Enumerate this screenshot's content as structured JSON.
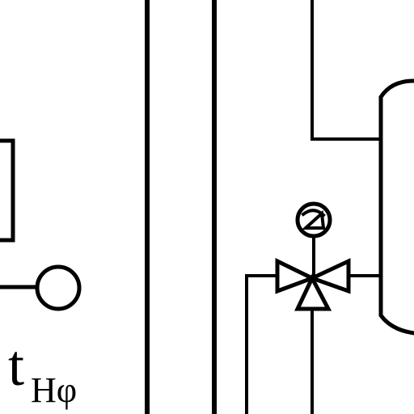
{
  "labels": {
    "temperature_symbol": "t",
    "temperature_subscript": "Hφ"
  },
  "colors": {
    "line": "#000000",
    "background": "#ffffff"
  },
  "icons": {
    "valve": "three-way-valve-icon",
    "actuator": "valve-actuator-icon",
    "sensor": "temperature-sensor-icon",
    "tank": "storage-tank-icon"
  }
}
